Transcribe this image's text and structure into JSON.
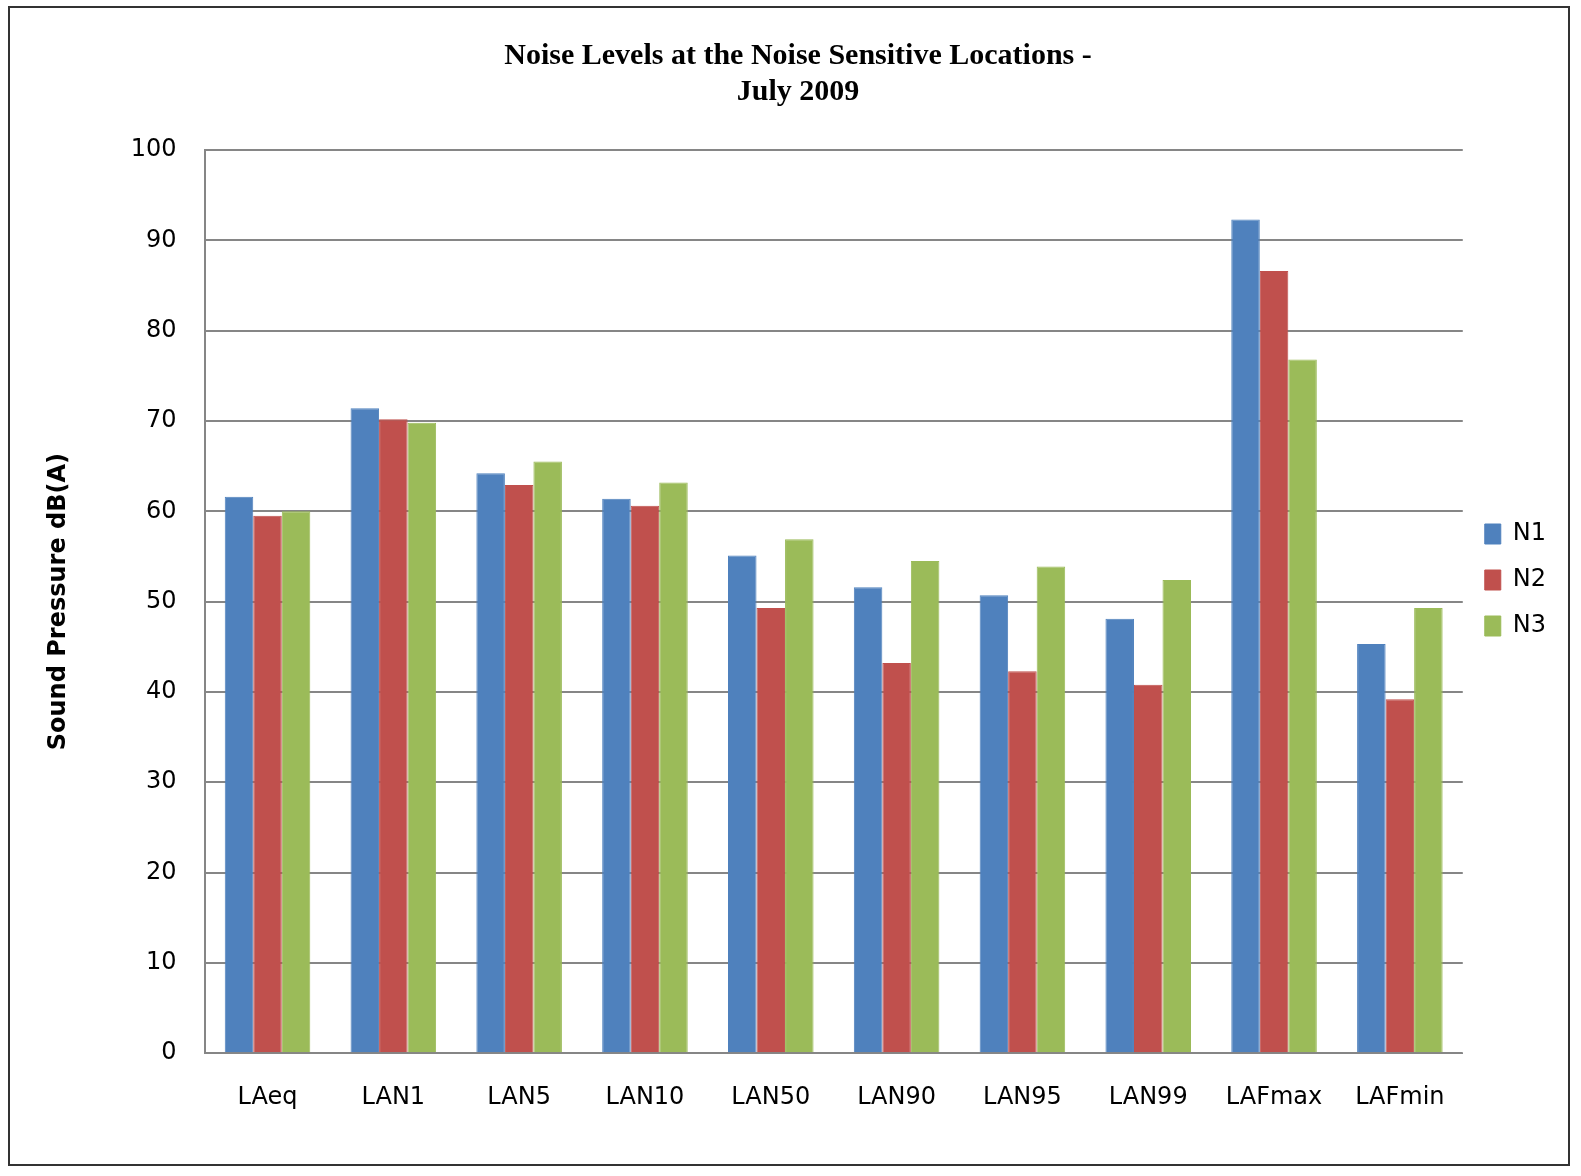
{
  "chart_data": {
    "type": "bar",
    "title": [
      "Noise Levels at the Noise Sensitive Locations -",
      "July 2009"
    ],
    "ylabel": "Sound Pressure dB(A)",
    "categories": [
      "LAeq",
      "LAN1",
      "LAN5",
      "LAN10",
      "LAN50",
      "LAN90",
      "LAN95",
      "LAN99",
      "LAFmax",
      "LAFmin"
    ],
    "series": [
      {
        "name": "N1",
        "color": "#4f81bd",
        "values": [
          61.6,
          71.4,
          64.2,
          61.4,
          55.1,
          51.6,
          50.7,
          48.1,
          92.3,
          45.3
        ]
      },
      {
        "name": "N2",
        "color": "#c0504d",
        "values": [
          59.5,
          70.2,
          62.9,
          60.6,
          49.3,
          43.2,
          42.3,
          40.8,
          86.6,
          39.2
        ]
      },
      {
        "name": "N3",
        "color": "#9bbb59",
        "values": [
          60,
          69.8,
          65.5,
          63.2,
          56.9,
          54.5,
          53.9,
          52.4,
          76.8,
          49.3
        ]
      }
    ],
    "ylim": [
      0,
      100
    ],
    "yticks": [
      0,
      10,
      20,
      30,
      40,
      50,
      60,
      70,
      80,
      90,
      100
    ],
    "grid": "y",
    "legend": "right"
  }
}
